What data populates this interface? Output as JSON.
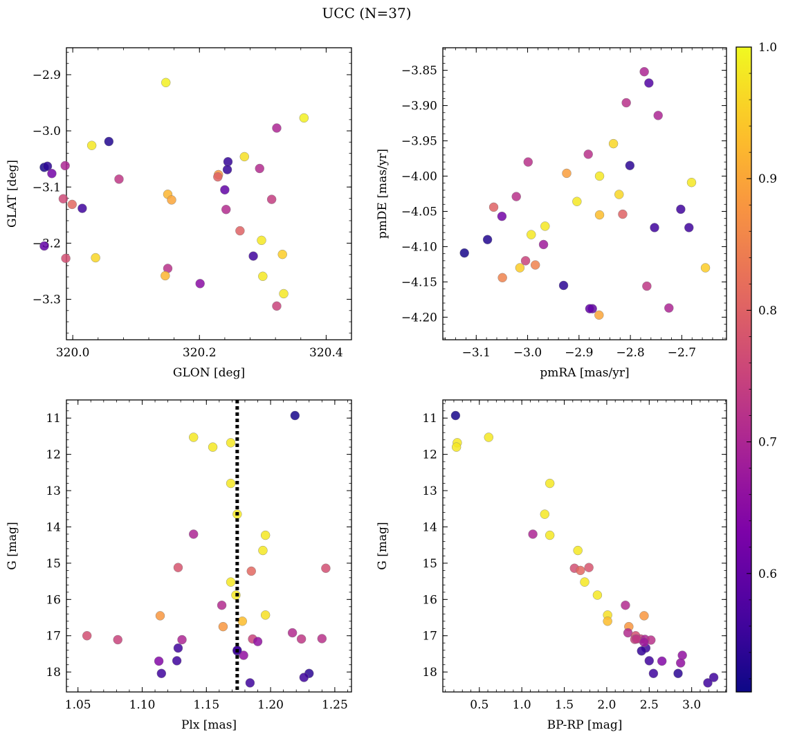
{
  "figure": {
    "title": "UCC (N=37)"
  },
  "colorbar": {
    "colormap": "plasma",
    "range": [
      0.51,
      1.0
    ],
    "ticks": [
      0.6,
      0.7,
      0.8,
      0.9,
      1.0
    ],
    "tick_labels": [
      "0.6",
      "0.7",
      "0.8",
      "0.9",
      "1.0"
    ]
  },
  "chart_data": [
    {
      "type": "scatter",
      "name": "sky-position",
      "xlabel": "GLON [deg]",
      "ylabel": "GLAT [deg]",
      "xlim": [
        319.99,
        320.44
      ],
      "ylim": [
        -3.372,
        -2.852
      ],
      "xticks": [
        320.0,
        320.2,
        320.4
      ],
      "xtick_labels": [
        "320.0",
        "320.2",
        "320.4"
      ],
      "yticks": [
        -2.9,
        -3.0,
        -3.1,
        -3.2,
        -3.3
      ],
      "ytick_labels": [
        "−2.9",
        "−3.0",
        "−3.1",
        "−3.2",
        "−3.3"
      ],
      "invert_y": false,
      "points": [
        {
          "x": 320.147,
          "y": -2.914,
          "c": 0.99
        },
        {
          "x": 320.365,
          "y": -2.977,
          "c": 0.99
        },
        {
          "x": 320.322,
          "y": -2.995,
          "c": 0.7
        },
        {
          "x": 320.057,
          "y": -3.019,
          "c": 0.53
        },
        {
          "x": 320.03,
          "y": -3.026,
          "c": 0.98
        },
        {
          "x": 320.271,
          "y": -3.046,
          "c": 0.97
        },
        {
          "x": 320.245,
          "y": -3.055,
          "c": 0.55
        },
        {
          "x": 319.988,
          "y": -3.062,
          "c": 0.7
        },
        {
          "x": 320.295,
          "y": -3.067,
          "c": 0.71
        },
        {
          "x": 320.244,
          "y": -3.069,
          "c": 0.55
        },
        {
          "x": 319.955,
          "y": -3.065,
          "c": 0.52
        },
        {
          "x": 319.96,
          "y": -3.063,
          "c": 0.54
        },
        {
          "x": 319.967,
          "y": -3.076,
          "c": 0.62
        },
        {
          "x": 320.23,
          "y": -3.078,
          "c": 0.88
        },
        {
          "x": 320.229,
          "y": -3.082,
          "c": 0.8
        },
        {
          "x": 320.073,
          "y": -3.086,
          "c": 0.73
        },
        {
          "x": 320.24,
          "y": -3.105,
          "c": 0.6
        },
        {
          "x": 320.15,
          "y": -3.113,
          "c": 0.92
        },
        {
          "x": 320.156,
          "y": -3.123,
          "c": 0.9
        },
        {
          "x": 319.985,
          "y": -3.121,
          "c": 0.76
        },
        {
          "x": 320.314,
          "y": -3.122,
          "c": 0.74
        },
        {
          "x": 319.999,
          "y": -3.131,
          "c": 0.81
        },
        {
          "x": 320.015,
          "y": -3.138,
          "c": 0.56
        },
        {
          "x": 320.242,
          "y": -3.14,
          "c": 0.71
        },
        {
          "x": 320.264,
          "y": -3.178,
          "c": 0.8
        },
        {
          "x": 320.298,
          "y": -3.195,
          "c": 0.98
        },
        {
          "x": 319.955,
          "y": -3.205,
          "c": 0.6
        },
        {
          "x": 320.331,
          "y": -3.22,
          "c": 0.95
        },
        {
          "x": 320.285,
          "y": -3.223,
          "c": 0.56
        },
        {
          "x": 320.036,
          "y": -3.226,
          "c": 0.96
        },
        {
          "x": 319.989,
          "y": -3.227,
          "c": 0.77
        },
        {
          "x": 320.15,
          "y": -3.245,
          "c": 0.72
        },
        {
          "x": 320.146,
          "y": -3.258,
          "c": 0.92
        },
        {
          "x": 320.3,
          "y": -3.259,
          "c": 0.98
        },
        {
          "x": 320.201,
          "y": -3.272,
          "c": 0.65
        },
        {
          "x": 320.333,
          "y": -3.29,
          "c": 0.98
        },
        {
          "x": 320.322,
          "y": -3.312,
          "c": 0.75
        }
      ]
    },
    {
      "type": "scatter",
      "name": "proper-motion",
      "xlabel": "pmRA [mas/yr]",
      "ylabel": "pmDE [mas/yr]",
      "xlim": [
        -3.165,
        -2.613
      ],
      "ylim": [
        -4.232,
        -3.818
      ],
      "xticks": [
        -3.1,
        -3.0,
        -2.9,
        -2.8,
        -2.7
      ],
      "xtick_labels": [
        "−3.1",
        "−3.0",
        "−2.9",
        "−2.8",
        "−2.7"
      ],
      "yticks": [
        -3.85,
        -3.9,
        -3.95,
        -4.0,
        -4.05,
        -4.1,
        -4.15,
        -4.2
      ],
      "ytick_labels": [
        "−3.85",
        "−3.90",
        "−3.95",
        "−4.00",
        "−4.05",
        "−4.10",
        "−4.15",
        "−4.20"
      ],
      "invert_y": false,
      "points": [
        {
          "x": -2.773,
          "y": -3.852,
          "c": 0.7
        },
        {
          "x": -2.764,
          "y": -3.868,
          "c": 0.58
        },
        {
          "x": -2.808,
          "y": -3.896,
          "c": 0.72
        },
        {
          "x": -2.746,
          "y": -3.914,
          "c": 0.7
        },
        {
          "x": -2.833,
          "y": -3.954,
          "c": 0.96
        },
        {
          "x": -2.882,
          "y": -3.969,
          "c": 0.72
        },
        {
          "x": -2.999,
          "y": -3.98,
          "c": 0.72
        },
        {
          "x": -2.801,
          "y": -3.985,
          "c": 0.54
        },
        {
          "x": -2.924,
          "y": -3.996,
          "c": 0.89
        },
        {
          "x": -2.86,
          "y": -4.0,
          "c": 0.98
        },
        {
          "x": -2.681,
          "y": -4.009,
          "c": 0.98
        },
        {
          "x": -2.822,
          "y": -4.026,
          "c": 0.96
        },
        {
          "x": -3.022,
          "y": -4.029,
          "c": 0.72
        },
        {
          "x": -2.904,
          "y": -4.036,
          "c": 0.98
        },
        {
          "x": -3.066,
          "y": -4.044,
          "c": 0.8
        },
        {
          "x": -2.702,
          "y": -4.047,
          "c": 0.56
        },
        {
          "x": -2.815,
          "y": -4.054,
          "c": 0.8
        },
        {
          "x": -2.86,
          "y": -4.055,
          "c": 0.93
        },
        {
          "x": -3.05,
          "y": -4.057,
          "c": 0.62
        },
        {
          "x": -2.966,
          "y": -4.071,
          "c": 0.98
        },
        {
          "x": -2.753,
          "y": -4.073,
          "c": 0.56
        },
        {
          "x": -2.686,
          "y": -4.073,
          "c": 0.56
        },
        {
          "x": -2.993,
          "y": -4.083,
          "c": 0.98
        },
        {
          "x": -3.078,
          "y": -4.09,
          "c": 0.53
        },
        {
          "x": -2.969,
          "y": -4.097,
          "c": 0.68
        },
        {
          "x": -3.123,
          "y": -4.109,
          "c": 0.52
        },
        {
          "x": -3.004,
          "y": -4.12,
          "c": 0.75
        },
        {
          "x": -2.985,
          "y": -4.126,
          "c": 0.85
        },
        {
          "x": -3.015,
          "y": -4.13,
          "c": 0.95
        },
        {
          "x": -2.654,
          "y": -4.13,
          "c": 0.95
        },
        {
          "x": -3.049,
          "y": -4.144,
          "c": 0.85
        },
        {
          "x": -2.93,
          "y": -4.155,
          "c": 0.54
        },
        {
          "x": -2.768,
          "y": -4.156,
          "c": 0.73
        },
        {
          "x": -2.874,
          "y": -4.188,
          "c": 0.6
        },
        {
          "x": -2.879,
          "y": -4.188,
          "c": 0.6
        },
        {
          "x": -2.725,
          "y": -4.187,
          "c": 0.7
        },
        {
          "x": -2.861,
          "y": -4.197,
          "c": 0.9
        }
      ]
    },
    {
      "type": "scatter",
      "name": "parallax-magnitude",
      "xlabel": "Plx [mas]",
      "ylabel": "G [mag]",
      "xlim": [
        1.041,
        1.263
      ],
      "ylim": [
        10.5,
        18.55
      ],
      "xticks": [
        1.05,
        1.1,
        1.15,
        1.2,
        1.25
      ],
      "xtick_labels": [
        "1.05",
        "1.10",
        "1.15",
        "1.20",
        "1.25"
      ],
      "yticks": [
        11,
        12,
        13,
        14,
        15,
        16,
        17,
        18
      ],
      "ytick_labels": [
        "11",
        "12",
        "13",
        "14",
        "15",
        "16",
        "17",
        "18"
      ],
      "invert_y": true,
      "reference_line": {
        "x": 1.174,
        "style": "dotted"
      },
      "points": [
        {
          "x": 1.219,
          "y": 10.93,
          "c": 0.52
        },
        {
          "x": 1.14,
          "y": 11.53,
          "c": 0.98
        },
        {
          "x": 1.169,
          "y": 11.68,
          "c": 0.98
        },
        {
          "x": 1.155,
          "y": 11.8,
          "c": 0.98
        },
        {
          "x": 1.169,
          "y": 12.8,
          "c": 0.98
        },
        {
          "x": 1.174,
          "y": 13.65,
          "c": 0.98
        },
        {
          "x": 1.14,
          "y": 14.2,
          "c": 0.7
        },
        {
          "x": 1.196,
          "y": 14.23,
          "c": 0.98
        },
        {
          "x": 1.194,
          "y": 14.65,
          "c": 0.98
        },
        {
          "x": 1.128,
          "y": 15.12,
          "c": 0.78
        },
        {
          "x": 1.243,
          "y": 15.14,
          "c": 0.77
        },
        {
          "x": 1.185,
          "y": 15.22,
          "c": 0.81
        },
        {
          "x": 1.169,
          "y": 15.52,
          "c": 0.98
        },
        {
          "x": 1.173,
          "y": 15.88,
          "c": 0.98
        },
        {
          "x": 1.162,
          "y": 16.16,
          "c": 0.71
        },
        {
          "x": 1.196,
          "y": 16.43,
          "c": 0.97
        },
        {
          "x": 1.114,
          "y": 16.45,
          "c": 0.88
        },
        {
          "x": 1.178,
          "y": 16.6,
          "c": 0.93
        },
        {
          "x": 1.163,
          "y": 16.75,
          "c": 0.88
        },
        {
          "x": 1.217,
          "y": 16.92,
          "c": 0.71
        },
        {
          "x": 1.057,
          "y": 17.0,
          "c": 0.77
        },
        {
          "x": 1.081,
          "y": 17.11,
          "c": 0.75
        },
        {
          "x": 1.131,
          "y": 17.11,
          "c": 0.7
        },
        {
          "x": 1.186,
          "y": 17.09,
          "c": 0.75
        },
        {
          "x": 1.224,
          "y": 17.09,
          "c": 0.73
        },
        {
          "x": 1.24,
          "y": 17.08,
          "c": 0.72
        },
        {
          "x": 1.19,
          "y": 17.16,
          "c": 0.66
        },
        {
          "x": 1.128,
          "y": 17.34,
          "c": 0.56
        },
        {
          "x": 1.174,
          "y": 17.42,
          "c": 0.55
        },
        {
          "x": 1.179,
          "y": 17.54,
          "c": 0.66
        },
        {
          "x": 1.113,
          "y": 17.7,
          "c": 0.64
        },
        {
          "x": 1.127,
          "y": 17.69,
          "c": 0.56
        },
        {
          "x": 1.115,
          "y": 18.04,
          "c": 0.56
        },
        {
          "x": 1.23,
          "y": 18.04,
          "c": 0.54
        },
        {
          "x": 1.226,
          "y": 18.15,
          "c": 0.56
        },
        {
          "x": 1.184,
          "y": 18.3,
          "c": 0.56
        },
        {
          "x": 1.174,
          "y": 17.4,
          "c": 0.56
        }
      ]
    },
    {
      "type": "scatter",
      "name": "color-magnitude",
      "xlabel": "BP-RP [mag]",
      "ylabel": "G [mag]",
      "xlim": [
        0.07,
        3.41
      ],
      "ylim": [
        10.5,
        18.55
      ],
      "xticks": [
        0.5,
        1.0,
        1.5,
        2.0,
        2.5,
        3.0
      ],
      "xtick_labels": [
        "0.5",
        "1.0",
        "1.5",
        "2.0",
        "2.5",
        "3.0"
      ],
      "yticks": [
        11,
        12,
        13,
        14,
        15,
        16,
        17,
        18
      ],
      "ytick_labels": [
        "11",
        "12",
        "13",
        "14",
        "15",
        "16",
        "17",
        "18"
      ],
      "invert_y": true,
      "points": [
        {
          "x": 0.22,
          "y": 10.93,
          "c": 0.52
        },
        {
          "x": 0.24,
          "y": 11.68,
          "c": 0.98
        },
        {
          "x": 0.23,
          "y": 11.8,
          "c": 0.98
        },
        {
          "x": 0.61,
          "y": 11.53,
          "c": 0.98
        },
        {
          "x": 1.33,
          "y": 12.8,
          "c": 0.98
        },
        {
          "x": 1.27,
          "y": 13.65,
          "c": 0.98
        },
        {
          "x": 1.13,
          "y": 14.2,
          "c": 0.7
        },
        {
          "x": 1.33,
          "y": 14.23,
          "c": 0.98
        },
        {
          "x": 1.66,
          "y": 14.65,
          "c": 0.98
        },
        {
          "x": 1.62,
          "y": 15.14,
          "c": 0.77
        },
        {
          "x": 1.69,
          "y": 15.2,
          "c": 0.81
        },
        {
          "x": 1.79,
          "y": 15.12,
          "c": 0.78
        },
        {
          "x": 1.74,
          "y": 15.52,
          "c": 0.98
        },
        {
          "x": 1.89,
          "y": 15.88,
          "c": 0.98
        },
        {
          "x": 2.22,
          "y": 16.16,
          "c": 0.71
        },
        {
          "x": 2.01,
          "y": 16.43,
          "c": 0.97
        },
        {
          "x": 2.44,
          "y": 16.45,
          "c": 0.88
        },
        {
          "x": 2.01,
          "y": 16.6,
          "c": 0.93
        },
        {
          "x": 2.26,
          "y": 16.75,
          "c": 0.88
        },
        {
          "x": 2.25,
          "y": 16.92,
          "c": 0.71
        },
        {
          "x": 2.34,
          "y": 17.0,
          "c": 0.77
        },
        {
          "x": 2.33,
          "y": 17.1,
          "c": 0.75
        },
        {
          "x": 2.4,
          "y": 17.09,
          "c": 0.75
        },
        {
          "x": 2.45,
          "y": 17.1,
          "c": 0.7
        },
        {
          "x": 2.52,
          "y": 17.12,
          "c": 0.72
        },
        {
          "x": 2.35,
          "y": 17.09,
          "c": 0.73
        },
        {
          "x": 2.46,
          "y": 17.34,
          "c": 0.56
        },
        {
          "x": 2.41,
          "y": 17.42,
          "c": 0.55
        },
        {
          "x": 2.89,
          "y": 17.54,
          "c": 0.66
        },
        {
          "x": 2.5,
          "y": 17.69,
          "c": 0.56
        },
        {
          "x": 2.65,
          "y": 17.7,
          "c": 0.64
        },
        {
          "x": 2.87,
          "y": 17.75,
          "c": 0.66
        },
        {
          "x": 2.55,
          "y": 18.04,
          "c": 0.56
        },
        {
          "x": 2.84,
          "y": 18.04,
          "c": 0.54
        },
        {
          "x": 3.26,
          "y": 18.15,
          "c": 0.56
        },
        {
          "x": 3.19,
          "y": 18.3,
          "c": 0.56
        },
        {
          "x": 2.44,
          "y": 17.18,
          "c": 0.68
        }
      ]
    }
  ]
}
